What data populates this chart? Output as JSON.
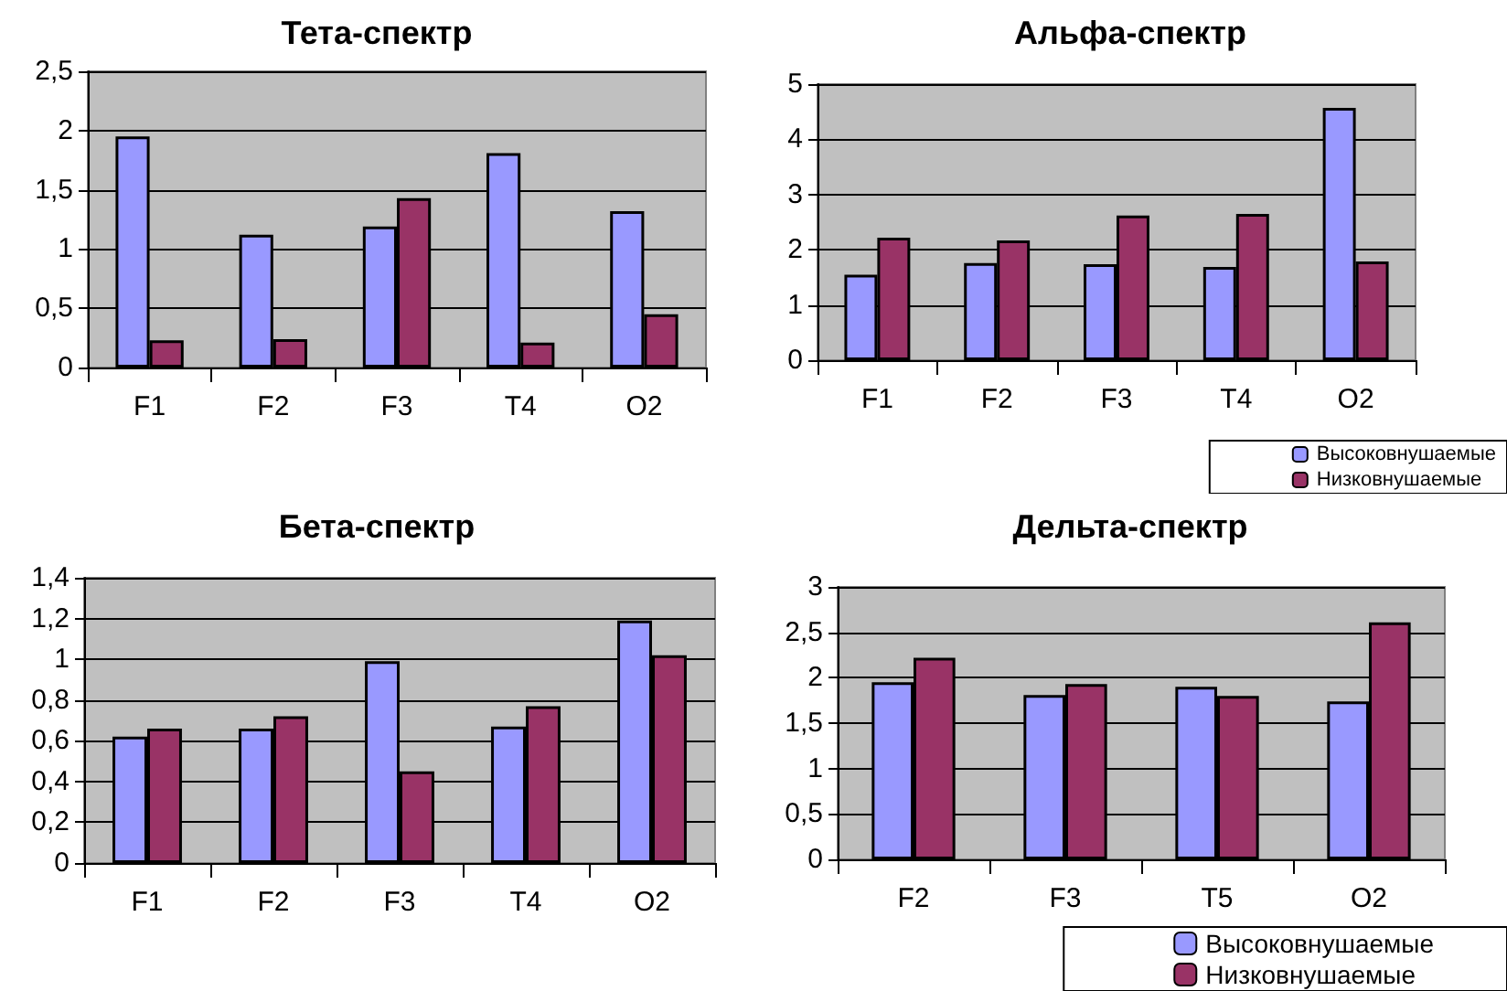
{
  "chart_data": [
    {
      "type": "bar",
      "title": "Тета-спектр",
      "categories": [
        "F1",
        "F2",
        "F3",
        "T4",
        "O2"
      ],
      "series": [
        {
          "color": "#9999ff",
          "values": [
            1.95,
            1.12,
            1.19,
            1.81,
            1.32
          ]
        },
        {
          "color": "#993366",
          "values": [
            0.23,
            0.24,
            1.43,
            0.21,
            0.45
          ]
        }
      ],
      "ylim": [
        0,
        2.5
      ],
      "yticks": [
        0,
        {
          "value": 0.5,
          "label": "0,5"
        },
        1,
        {
          "value": 1.5,
          "label": "1,5"
        },
        2,
        {
          "value": 2.5,
          "label": "2,5"
        }
      ],
      "grid": "y",
      "legend": false
    },
    {
      "type": "bar",
      "title": "Альфа-спектр",
      "categories": [
        "F1",
        "F2",
        "F3",
        "T4",
        "O2"
      ],
      "series": [
        {
          "name": "Высоковнушаемые",
          "color": "#9999ff",
          "values": [
            1.55,
            1.76,
            1.74,
            1.69,
            4.57
          ]
        },
        {
          "name": "Низковнушаемые",
          "color": "#993366",
          "values": [
            2.22,
            2.17,
            2.62,
            2.65,
            1.79
          ]
        }
      ],
      "ylim": [
        0,
        5
      ],
      "yticks": [
        0,
        1,
        2,
        3,
        4,
        5
      ],
      "grid": "y",
      "legend": "bottom right"
    },
    {
      "type": "bar",
      "title": "Бета-спектр",
      "categories": [
        "F1",
        "F2",
        "F3",
        "T4",
        "O2"
      ],
      "series": [
        {
          "color": "#9999ff",
          "values": [
            0.62,
            0.66,
            0.99,
            0.67,
            1.19
          ]
        },
        {
          "color": "#993366",
          "values": [
            0.66,
            0.72,
            0.45,
            0.77,
            1.02
          ]
        }
      ],
      "ylim": [
        0,
        1.4
      ],
      "yticks": [
        0,
        {
          "value": 0.2,
          "label": "0,2"
        },
        {
          "value": 0.4,
          "label": "0,4"
        },
        {
          "value": 0.6,
          "label": "0,6"
        },
        {
          "value": 0.8,
          "label": "0,8"
        },
        1,
        {
          "value": 1.2,
          "label": "1,2"
        },
        {
          "value": 1.4,
          "label": "1,4"
        }
      ],
      "grid": "y",
      "legend": false
    },
    {
      "type": "bar",
      "title": "Дельта-спектр",
      "categories": [
        "F2",
        "F3",
        "T5",
        "O2"
      ],
      "series": [
        {
          "name": "Высоковнушаемые",
          "color": "#9999ff",
          "values": [
            1.95,
            1.81,
            1.9,
            1.74
          ]
        },
        {
          "name": "Низковнушаемые",
          "color": "#993366",
          "values": [
            2.22,
            1.93,
            1.8,
            2.61
          ]
        }
      ],
      "ylim": [
        0,
        3
      ],
      "yticks": [
        0,
        {
          "value": 0.5,
          "label": "0,5"
        },
        1,
        {
          "value": 1.5,
          "label": "1,5"
        },
        2,
        {
          "value": 2.5,
          "label": "2,5"
        },
        3
      ],
      "grid": "y",
      "legend": "bottom right"
    }
  ]
}
